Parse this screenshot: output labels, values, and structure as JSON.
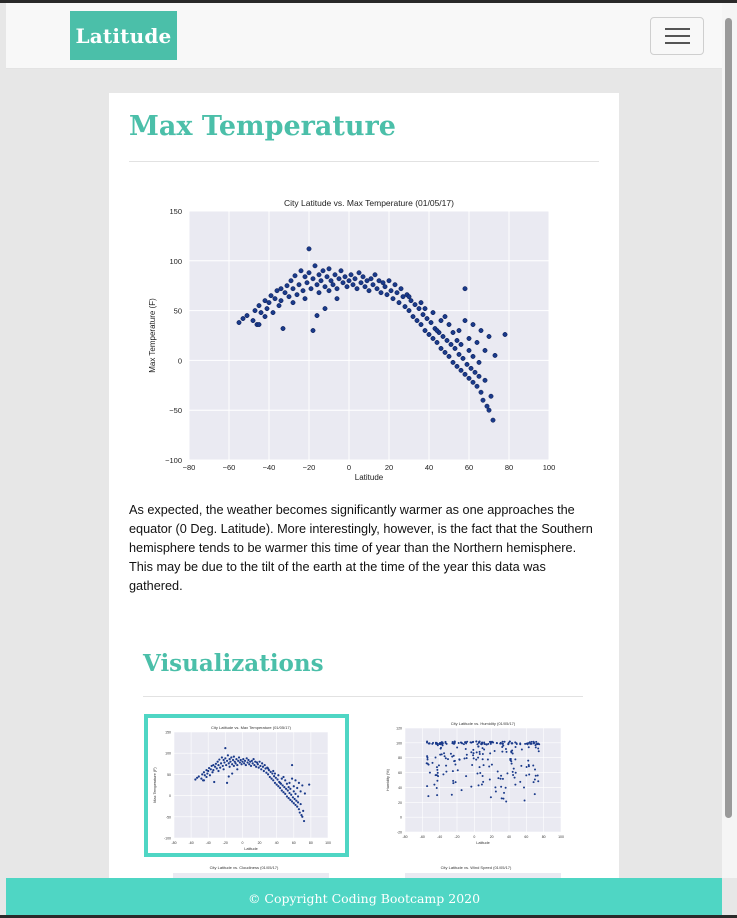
{
  "nav": {
    "brand": "Latitude",
    "menu_icon": "hamburger-icon"
  },
  "page": {
    "title": "Max Temperature",
    "description": "As expected, the weather becomes significantly warmer as one approaches the equator (0 Deg. Latitude). More interestingly, however, is the fact that the Southern hemisphere tends to be warmer this time of year than the Northern hemisphere. This may be due to the tilt of the earth at the time of the year this data was gathered.",
    "visualizations_heading": "Visualizations"
  },
  "thumbnails": [
    {
      "title": "City Latitude vs. Max Temperature (01/05/17)",
      "ylabel": "Max Temperature (F)",
      "xlabel": "Latitude",
      "selected": true
    },
    {
      "title": "City Latitude vs. Humidity (01/05/17)",
      "ylabel": "Humidity (%)",
      "xlabel": "Latitude",
      "selected": false
    },
    {
      "title": "City Latitude vs. Cloudiness (01/05/17)",
      "selected": false
    },
    {
      "title": "City Latitude vs. Wind Speed (01/05/17)",
      "selected": false
    }
  ],
  "chart_data": {
    "type": "scatter",
    "title": "City Latitude vs. Max Temperature (01/05/17)",
    "xlabel": "Latitude",
    "ylabel": "Max Temperature (F)",
    "xlim": [
      -80,
      100
    ],
    "ylim": [
      -100,
      150
    ],
    "xticks": [
      "-80",
      "-60",
      "-40",
      "-20",
      "0",
      "20",
      "40",
      "60",
      "80",
      "100"
    ],
    "yticks": [
      "150",
      "100",
      "50",
      "0",
      "-50",
      "-100"
    ],
    "grid": true,
    "points": [
      [
        -55,
        38
      ],
      [
        -53,
        42
      ],
      [
        -51,
        45
      ],
      [
        -48,
        40
      ],
      [
        -47,
        50
      ],
      [
        -46,
        36
      ],
      [
        -45,
        55
      ],
      [
        -44,
        48
      ],
      [
        -42,
        60
      ],
      [
        -42,
        44
      ],
      [
        -41,
        52
      ],
      [
        -40,
        58
      ],
      [
        -39,
        65
      ],
      [
        -38,
        48
      ],
      [
        -37,
        62
      ],
      [
        -36,
        70
      ],
      [
        -35,
        55
      ],
      [
        -34,
        72
      ],
      [
        -34,
        60
      ],
      [
        -33,
        32
      ],
      [
        -32,
        68
      ],
      [
        -31,
        75
      ],
      [
        -30,
        64
      ],
      [
        -29,
        80
      ],
      [
        -28,
        58
      ],
      [
        -28,
        72
      ],
      [
        -27,
        85
      ],
      [
        -26,
        66
      ],
      [
        -25,
        76
      ],
      [
        -24,
        90
      ],
      [
        -23,
        70
      ],
      [
        -22,
        62
      ],
      [
        -22,
        84
      ],
      [
        -21,
        78
      ],
      [
        -20,
        88
      ],
      [
        -20,
        112
      ],
      [
        -19,
        72
      ],
      [
        -18,
        82
      ],
      [
        -17,
        95
      ],
      [
        -16,
        76
      ],
      [
        -15,
        68
      ],
      [
        -15,
        86
      ],
      [
        -14,
        80
      ],
      [
        -13,
        90
      ],
      [
        -12,
        74
      ],
      [
        -11,
        84
      ],
      [
        -10,
        70
      ],
      [
        -10,
        92
      ],
      [
        -9,
        80
      ],
      [
        -8,
        76
      ],
      [
        -7,
        86
      ],
      [
        -6,
        72
      ],
      [
        -5,
        82
      ],
      [
        -4,
        90
      ],
      [
        -3,
        78
      ],
      [
        -2,
        84
      ],
      [
        -1,
        74
      ],
      [
        0,
        80
      ],
      [
        1,
        86
      ],
      [
        2,
        76
      ],
      [
        3,
        82
      ],
      [
        4,
        72
      ],
      [
        5,
        88
      ],
      [
        6,
        78
      ],
      [
        7,
        84
      ],
      [
        8,
        74
      ],
      [
        9,
        80
      ],
      [
        10,
        70
      ],
      [
        11,
        82
      ],
      [
        12,
        76
      ],
      [
        13,
        86
      ],
      [
        14,
        72
      ],
      [
        15,
        80
      ],
      [
        16,
        68
      ],
      [
        17,
        78
      ],
      [
        18,
        74
      ],
      [
        19,
        66
      ],
      [
        20,
        80
      ],
      [
        21,
        70
      ],
      [
        22,
        62
      ],
      [
        23,
        76
      ],
      [
        24,
        68
      ],
      [
        25,
        58
      ],
      [
        26,
        72
      ],
      [
        27,
        64
      ],
      [
        28,
        54
      ],
      [
        29,
        66
      ],
      [
        30,
        50
      ],
      [
        31,
        60
      ],
      [
        32,
        44
      ],
      [
        33,
        56
      ],
      [
        34,
        40
      ],
      [
        35,
        52
      ],
      [
        36,
        36
      ],
      [
        37,
        46
      ],
      [
        38,
        30
      ],
      [
        39,
        42
      ],
      [
        40,
        26
      ],
      [
        41,
        38
      ],
      [
        42,
        22
      ],
      [
        43,
        32
      ],
      [
        44,
        18
      ],
      [
        45,
        28
      ],
      [
        46,
        12
      ],
      [
        47,
        24
      ],
      [
        48,
        8
      ],
      [
        49,
        20
      ],
      [
        50,
        4
      ],
      [
        51,
        16
      ],
      [
        52,
        -2
      ],
      [
        53,
        12
      ],
      [
        54,
        -6
      ],
      [
        55,
        6
      ],
      [
        56,
        -10
      ],
      [
        57,
        2
      ],
      [
        58,
        -14
      ],
      [
        59,
        -4
      ],
      [
        60,
        -18
      ],
      [
        61,
        -8
      ],
      [
        62,
        -22
      ],
      [
        63,
        -12
      ],
      [
        64,
        -26
      ],
      [
        65,
        -16
      ],
      [
        66,
        -32
      ],
      [
        67,
        -40
      ],
      [
        68,
        -20
      ],
      [
        69,
        -46
      ],
      [
        70,
        -50
      ],
      [
        71,
        -36
      ],
      [
        72,
        -60
      ],
      [
        55,
        30
      ],
      [
        58,
        40
      ],
      [
        60,
        22
      ],
      [
        62,
        36
      ],
      [
        64,
        18
      ],
      [
        66,
        30
      ],
      [
        68,
        10
      ],
      [
        70,
        24
      ],
      [
        73,
        5
      ],
      [
        78,
        26
      ],
      [
        50,
        36
      ],
      [
        52,
        28
      ],
      [
        54,
        20
      ],
      [
        46,
        40
      ],
      [
        44,
        30
      ],
      [
        48,
        44
      ],
      [
        42,
        48
      ],
      [
        38,
        52
      ],
      [
        36,
        58
      ],
      [
        30,
        64
      ],
      [
        -18,
        30
      ],
      [
        -16,
        45
      ],
      [
        -12,
        52
      ],
      [
        -6,
        62
      ],
      [
        58,
        72
      ],
      [
        -45,
        36
      ],
      [
        65,
        -2
      ],
      [
        60,
        10
      ],
      [
        56,
        16
      ],
      [
        62,
        4
      ]
    ]
  }
}
